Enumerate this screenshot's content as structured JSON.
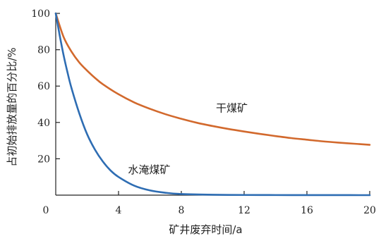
{
  "chart_data": {
    "type": "line",
    "xlabel": "矿井废弃时间/a",
    "ylabel": "占初始排放量的百分比/%",
    "xlim": [
      0,
      20
    ],
    "ylim": [
      0,
      100
    ],
    "xticks": [
      0,
      4,
      8,
      12,
      16,
      20
    ],
    "yticks": [
      20,
      40,
      60,
      80,
      100
    ],
    "grid": false,
    "legend": "none",
    "series": [
      {
        "name": "干煤矿",
        "color": "#d2692d",
        "x": [
          0,
          0.5,
          1,
          1.5,
          2,
          2.5,
          3,
          4,
          5,
          6,
          7,
          8,
          9,
          10,
          11,
          12,
          13,
          14,
          15,
          16,
          17,
          18,
          19,
          20
        ],
        "y": [
          100,
          87,
          79,
          73,
          68.5,
          64.5,
          61,
          55.5,
          51,
          47.5,
          44.5,
          42,
          39.8,
          38,
          36.4,
          35,
          33.7,
          32.5,
          31.4,
          30.5,
          29.6,
          28.9,
          28.3,
          27.7
        ]
      },
      {
        "name": "水淹煤矿",
        "color": "#2e6db3",
        "x": [
          0,
          0.25,
          0.5,
          0.75,
          1,
          1.5,
          2,
          2.5,
          3,
          3.5,
          4,
          5,
          6,
          7,
          8,
          10,
          12,
          14,
          16,
          18,
          20
        ],
        "y": [
          100,
          88,
          77,
          67.5,
          59,
          45,
          33.5,
          25,
          18.5,
          13.5,
          10,
          5.2,
          2.6,
          1.3,
          0.6,
          0.2,
          0.1,
          0.05,
          0.02,
          0.01,
          0
        ]
      }
    ],
    "annotations": [
      {
        "text": "干煤矿",
        "x": 10.2,
        "y": 46
      },
      {
        "text": "水淹煤矿",
        "x": 4.6,
        "y": 12
      }
    ]
  }
}
